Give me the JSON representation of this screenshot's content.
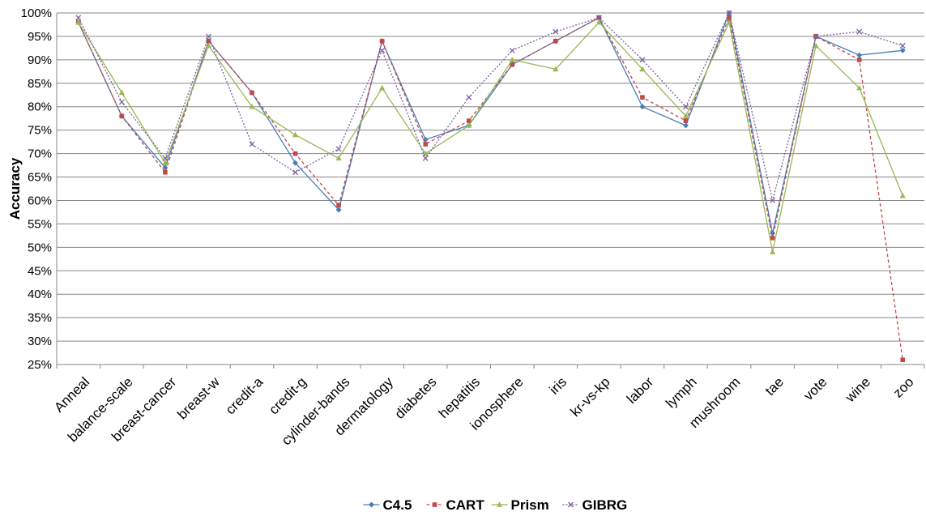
{
  "chart_data": {
    "type": "line",
    "title": "",
    "xlabel": "",
    "ylabel": "Accuracy",
    "ylim": [
      25,
      100
    ],
    "y_tick_step": 5,
    "y_tick_suffix": "%",
    "grid": true,
    "legend_position": "bottom",
    "categories": [
      "Anneal",
      "balance-scale",
      "breast-cancer",
      "breast-w",
      "credit-a",
      "credit-g",
      "cylinder-bands",
      "dermatology",
      "diabetes",
      "hepatitis",
      "ionosphere",
      "iris",
      "kr-vs-kp",
      "labor",
      "lymph",
      "mushroom",
      "tae",
      "vote",
      "wine",
      "zoo"
    ],
    "series": [
      {
        "name": "C4.5",
        "color": "#4a7ebb",
        "marker": "diamond",
        "dash": "solid",
        "values": [
          98,
          78,
          67,
          94,
          83,
          68,
          58,
          94,
          73,
          76,
          89,
          94,
          99,
          80,
          76,
          100,
          53,
          95,
          91,
          92
        ]
      },
      {
        "name": "CART",
        "color": "#be4b48",
        "marker": "square",
        "dash": "dashed",
        "values": [
          98,
          78,
          66,
          94,
          83,
          70,
          59,
          94,
          72,
          77,
          89,
          94,
          99,
          82,
          77,
          99,
          52,
          95,
          90,
          26
        ]
      },
      {
        "name": "Prism",
        "color": "#98b954",
        "marker": "triangle",
        "dash": "solid",
        "values": [
          98,
          83,
          68,
          93,
          80,
          74,
          69,
          84,
          70,
          76,
          90,
          88,
          98,
          88,
          78,
          98,
          49,
          93,
          84,
          61
        ]
      },
      {
        "name": "GIBRG",
        "color": "#7d60a0",
        "marker": "x",
        "dash": "dotted",
        "values": [
          99,
          81,
          69,
          95,
          72,
          66,
          71,
          92,
          69,
          82,
          92,
          96,
          99,
          90,
          80,
          100,
          60,
          95,
          96,
          93
        ]
      }
    ]
  }
}
